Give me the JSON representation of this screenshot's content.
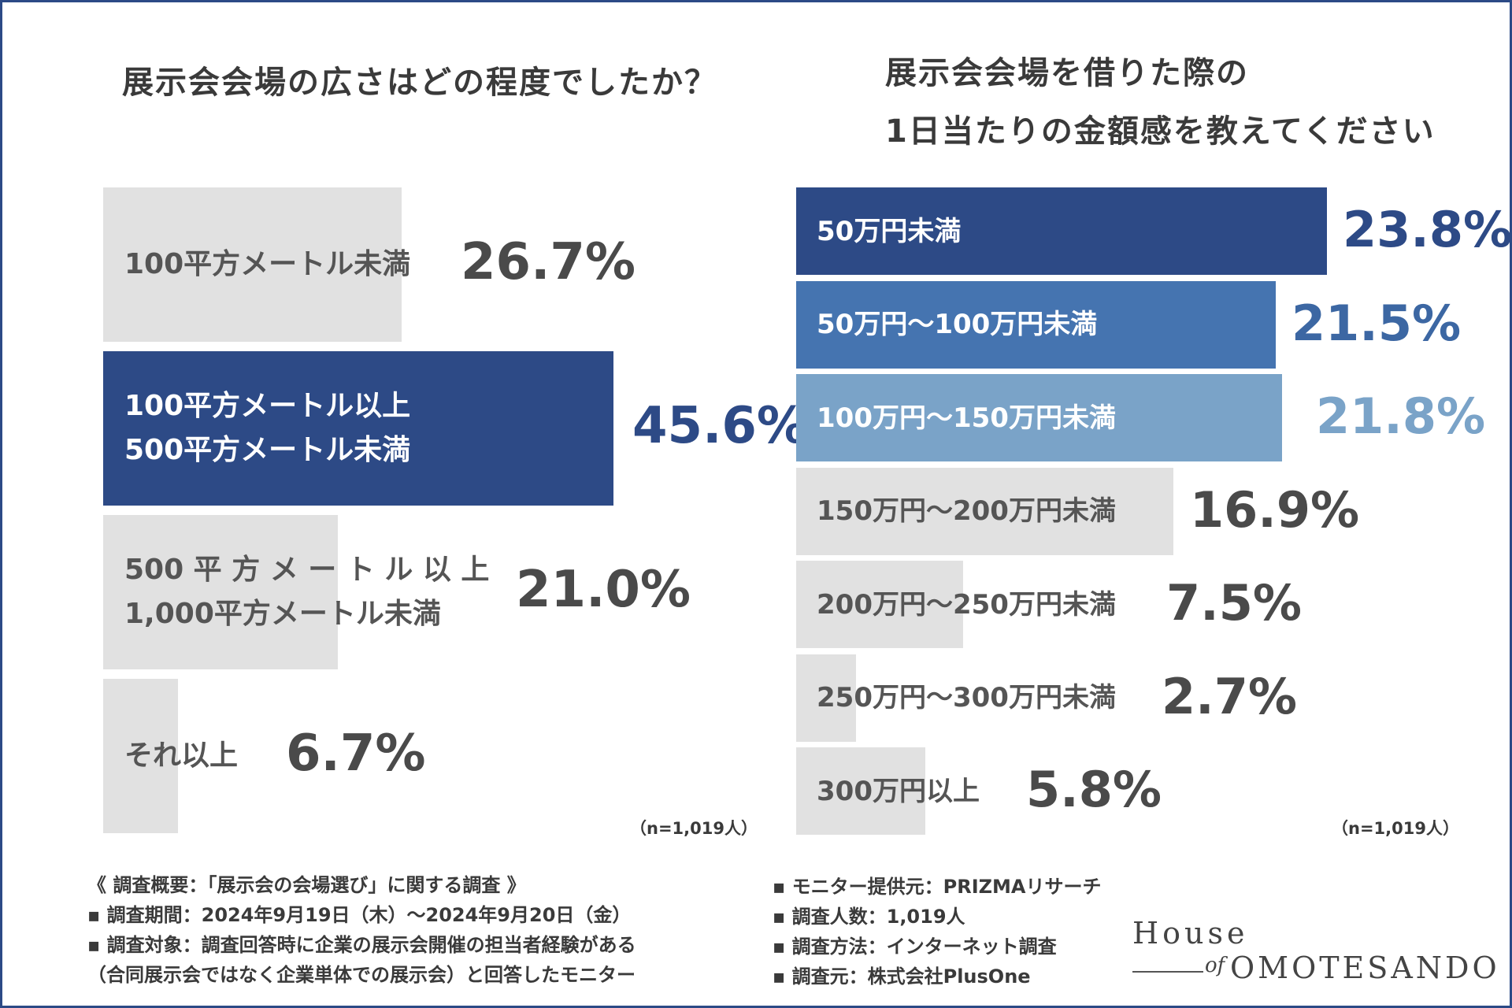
{
  "chart_data": [
    {
      "type": "bar",
      "orientation": "horizontal",
      "title": "展示会会場の広さはどの程度でしたか？",
      "categories": [
        "100平方メートル未満",
        "100平方メートル以上\n500平方メートル未満",
        "500 平 方 メ ー ト ル 以 上\n1,000平方メートル未満",
        "それ以上"
      ],
      "values": [
        26.7,
        45.6,
        21.0,
        6.7
      ],
      "value_labels": [
        "26.7%",
        "45.6%",
        "21.0%",
        "6.7%"
      ],
      "colors": [
        "#e1e1e1",
        "#2d4a86",
        "#e1e1e1",
        "#e1e1e1"
      ],
      "value_colors": [
        "#4a4a4a",
        "#2d4a86",
        "#4a4a4a",
        "#4a4a4a"
      ],
      "label_colors": [
        "#555555",
        "#ffffff",
        "#555555",
        "#555555"
      ],
      "note": "（n=1,019人）"
    },
    {
      "type": "bar",
      "orientation": "horizontal",
      "title": "展示会会場を借りた際の\n1日当たりの金額感を教えてください",
      "categories": [
        "50万円未満",
        "50万円〜100万円未満",
        "100万円〜150万円未満",
        "150万円〜200万円未満",
        "200万円〜250万円未満",
        "250万円〜300万円未満",
        "300万円以上"
      ],
      "values": [
        23.8,
        21.5,
        21.8,
        16.9,
        7.5,
        2.7,
        5.8
      ],
      "value_labels": [
        "23.8%",
        "21.5%",
        "21.8%",
        "16.9%",
        "7.5%",
        "2.7%",
        "5.8%"
      ],
      "colors": [
        "#2d4a86",
        "#4574b0",
        "#7aa3c8",
        "#e1e1e1",
        "#e1e1e1",
        "#e1e1e1",
        "#e1e1e1"
      ],
      "value_colors": [
        "#2d4a86",
        "#3c67a3",
        "#7aa3c8",
        "#4a4a4a",
        "#4a4a4a",
        "#4a4a4a",
        "#4a4a4a"
      ],
      "label_colors": [
        "#ffffff",
        "#ffffff",
        "#ffffff",
        "#555555",
        "#555555",
        "#555555",
        "#555555"
      ],
      "note": "（n=1,019人）"
    }
  ],
  "survey_info": {
    "left_lines": [
      "《 調査概要：「展示会の会場選び」に関する調査 》",
      "▪ 調査期間：2024年9月19日（木）〜2024年9月20日（金）",
      "▪ 調査対象：調査回答時に企業の展示会開催の担当者経験がある",
      "（合同展示会ではなく企業単体での展示会）と回答したモニター"
    ],
    "right_lines": [
      "▪ モニター提供元：PRIZMAリサーチ",
      "▪ 調査人数：1,019人",
      "▪ 調査方法：インターネット調査",
      "▪ 調査元：株式会社PlusOne"
    ]
  },
  "logo": {
    "line1": "House",
    "of": "of",
    "line2": "OMOTESANDO"
  },
  "colors": {
    "frame": "#2c4a86"
  }
}
